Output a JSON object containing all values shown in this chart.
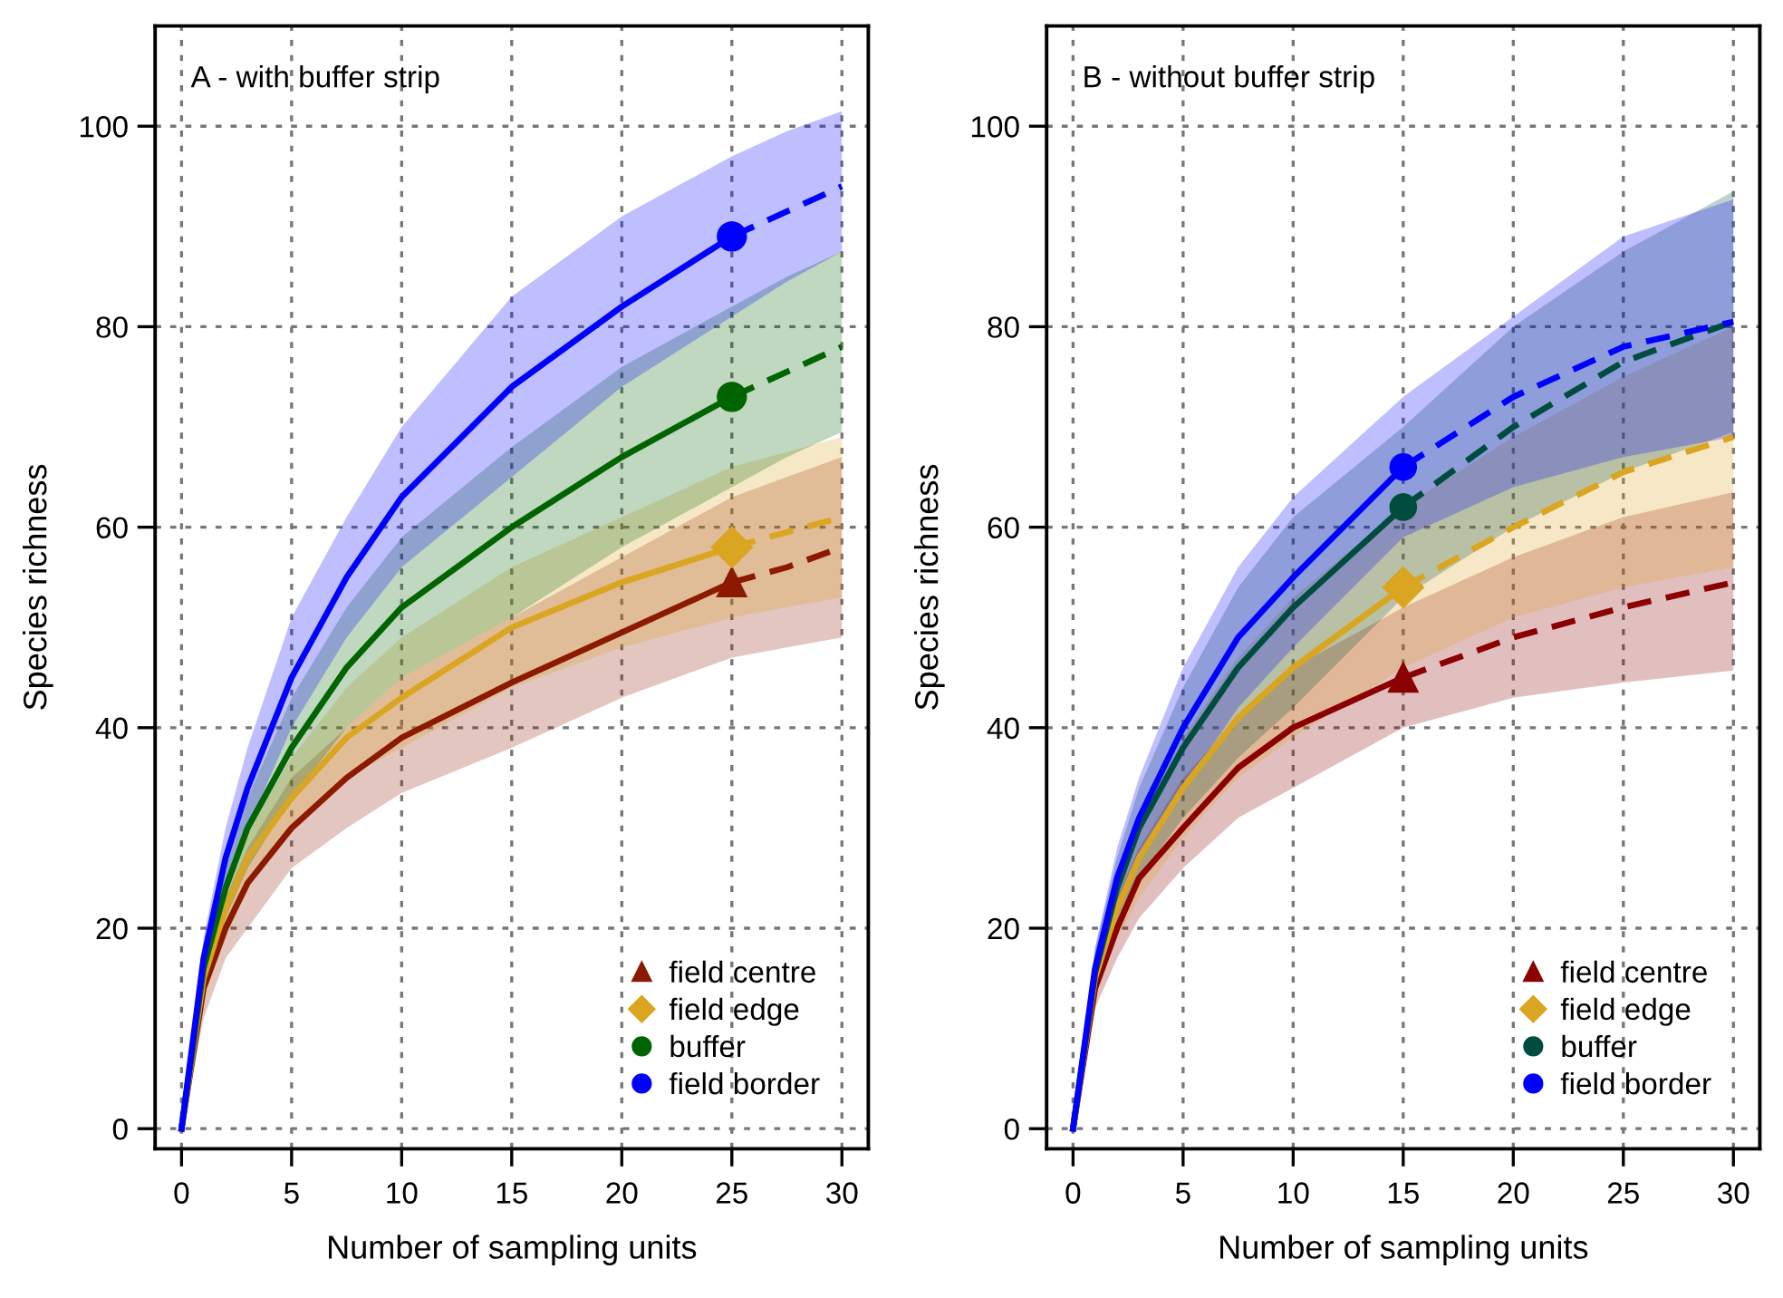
{
  "chart_data": [
    {
      "type": "line",
      "title": "A - with buffer strip",
      "xlabel": "Number of sampling units",
      "ylabel": "Species richness",
      "xlim": [
        -1.2,
        31.2
      ],
      "ylim": [
        -2,
        110
      ],
      "xticks": [
        0,
        5,
        10,
        15,
        20,
        25,
        30
      ],
      "yticks": [
        0,
        20,
        40,
        60,
        80,
        100
      ],
      "grid": true,
      "legend": "bottom right",
      "series": [
        {
          "color": "#8b1a00",
          "line_style": "solid",
          "x": [
            0,
            1,
            2,
            3,
            5,
            7.5,
            10,
            15,
            20,
            25
          ],
          "values": [
            0,
            14,
            20,
            24.5,
            30,
            35,
            39,
            44.5,
            49.5,
            54.5
          ],
          "lower": [
            0,
            11,
            17,
            20,
            26,
            30,
            33.5,
            38,
            43,
            47
          ],
          "upper": [
            0,
            17,
            23,
            28,
            35,
            40,
            45,
            51,
            57,
            63
          ]
        },
        {
          "color": "#8b1a00",
          "line_style": "dashed",
          "x": [
            25,
            27.5,
            30
          ],
          "values": [
            54.5,
            56,
            58
          ],
          "lower": [
            47,
            48,
            49
          ],
          "upper": [
            63,
            65,
            67
          ]
        },
        {
          "color": "#daa520",
          "line_style": "solid",
          "x": [
            0,
            1,
            2,
            3,
            5,
            7.5,
            10,
            15,
            20,
            25
          ],
          "values": [
            0,
            15,
            22,
            27,
            33,
            39,
            43,
            50,
            54.5,
            58
          ],
          "lower": [
            0,
            13,
            19,
            24,
            30,
            35,
            38,
            44,
            48,
            51
          ],
          "upper": [
            0,
            17,
            25,
            30,
            37,
            44,
            49,
            56,
            61,
            66
          ]
        },
        {
          "color": "#daa520",
          "line_style": "dashed",
          "x": [
            25,
            27.5,
            30
          ],
          "values": [
            58,
            59.5,
            61
          ],
          "lower": [
            51,
            52,
            53
          ],
          "upper": [
            66,
            67.5,
            69
          ]
        },
        {
          "color": "#006400",
          "line_style": "solid",
          "x": [
            0,
            1,
            2,
            3,
            5,
            7.5,
            10,
            15,
            20,
            25
          ],
          "values": [
            0,
            16,
            24,
            30,
            38,
            46,
            52,
            60,
            67,
            73
          ],
          "lower": [
            0,
            14,
            21,
            26,
            33,
            40,
            45,
            51,
            58,
            64
          ],
          "upper": [
            0,
            18,
            27,
            33,
            43,
            52,
            59,
            68,
            76,
            82
          ]
        },
        {
          "color": "#006400",
          "line_style": "dashed",
          "x": [
            25,
            27.5,
            30
          ],
          "values": [
            73,
            75.5,
            78
          ],
          "lower": [
            64,
            67,
            69.5
          ],
          "upper": [
            82,
            85,
            87.5
          ]
        },
        {
          "color": "#0000ff",
          "line_style": "solid",
          "x": [
            0,
            1,
            2,
            3,
            5,
            7.5,
            10,
            15,
            20,
            25
          ],
          "values": [
            0,
            17,
            27,
            34,
            45,
            55,
            63,
            74,
            82,
            89
          ],
          "lower": [
            0,
            15,
            24,
            30,
            40,
            49,
            56,
            65,
            74,
            81
          ],
          "upper": [
            0,
            19,
            30,
            38,
            51,
            61,
            70,
            83,
            91,
            97
          ]
        },
        {
          "color": "#0000ff",
          "line_style": "dashed",
          "x": [
            25,
            27.5,
            30
          ],
          "values": [
            89,
            91.5,
            94
          ],
          "lower": [
            81,
            84.5,
            87.5
          ],
          "upper": [
            97,
            99.5,
            101.5
          ]
        },
        {
          "type": "scatter",
          "name": "field centre",
          "color": "#8b1a00",
          "marker": "triangle",
          "x": [
            25
          ],
          "values": [
            54.5
          ]
        },
        {
          "type": "scatter",
          "name": "field edge",
          "color": "#daa520",
          "marker": "diamond",
          "x": [
            25
          ],
          "values": [
            58
          ]
        },
        {
          "type": "scatter",
          "name": "buffer",
          "color": "#006400",
          "marker": "circle",
          "x": [
            25
          ],
          "values": [
            73
          ]
        },
        {
          "type": "scatter",
          "name": "field border",
          "color": "#0000ff",
          "marker": "circle",
          "x": [
            25
          ],
          "values": [
            89
          ]
        }
      ]
    },
    {
      "type": "line",
      "title": "B - without buffer strip",
      "xlabel": "Number of sampling units",
      "ylabel": "Species richness",
      "xlim": [
        -1.2,
        31.2
      ],
      "ylim": [
        -2,
        110
      ],
      "xticks": [
        0,
        5,
        10,
        15,
        20,
        25,
        30
      ],
      "yticks": [
        0,
        20,
        40,
        60,
        80,
        100
      ],
      "grid": true,
      "legend": "bottom right",
      "series": [
        {
          "color": "#8b0000",
          "line_style": "solid",
          "x": [
            0,
            1,
            2,
            3,
            5,
            7.5,
            10,
            15
          ],
          "values": [
            0,
            14,
            20,
            25,
            30,
            36,
            40,
            45
          ],
          "lower": [
            0,
            12,
            17,
            21,
            26,
            31,
            34,
            40
          ],
          "upper": [
            0,
            16,
            23,
            28,
            35,
            41,
            46,
            52
          ]
        },
        {
          "color": "#8b0000",
          "line_style": "dashed",
          "x": [
            15,
            20,
            25,
            30
          ],
          "values": [
            45,
            49,
            52,
            54.5
          ],
          "lower": [
            40,
            43,
            44.5,
            45.7
          ],
          "upper": [
            52,
            57,
            61,
            63.5
          ]
        },
        {
          "color": "#daa520",
          "line_style": "solid",
          "x": [
            0,
            1,
            2,
            3,
            5,
            7.5,
            10,
            15
          ],
          "values": [
            0,
            15,
            22,
            27,
            34,
            41,
            46,
            54
          ],
          "lower": [
            0,
            13,
            19,
            23,
            29,
            35,
            39,
            46
          ],
          "upper": [
            0,
            17,
            25,
            31,
            39,
            47,
            53,
            62
          ]
        },
        {
          "color": "#daa520",
          "line_style": "dashed",
          "x": [
            15,
            20,
            25,
            30
          ],
          "values": [
            54,
            60,
            65.5,
            69
          ],
          "lower": [
            46,
            51,
            54,
            56
          ],
          "upper": [
            62,
            69,
            75,
            80
          ]
        },
        {
          "color": "#004d40",
          "line_style": "solid",
          "x": [
            0,
            1,
            2,
            3,
            5,
            7.5,
            10,
            15
          ],
          "values": [
            0,
            15.5,
            24,
            30,
            38,
            46,
            52,
            62
          ],
          "lower": [
            0,
            13,
            20,
            25,
            31,
            37,
            42,
            53
          ],
          "upper": [
            0,
            18,
            27,
            34,
            44,
            54,
            61,
            70
          ]
        },
        {
          "color": "#004d40",
          "line_style": "dashed",
          "x": [
            15,
            20,
            25,
            30
          ],
          "values": [
            62,
            70,
            76.5,
            80.5
          ],
          "lower": [
            53,
            60,
            65.5,
            69.5
          ],
          "upper": [
            70,
            80,
            87.5,
            93.5
          ]
        },
        {
          "color": "#0000ff",
          "line_style": "solid",
          "x": [
            0,
            1,
            2,
            3,
            5,
            7.5,
            10,
            15
          ],
          "values": [
            0,
            16,
            25,
            31,
            40,
            49,
            55,
            66
          ],
          "lower": [
            0,
            14,
            22,
            27,
            34,
            42,
            48,
            59
          ],
          "upper": [
            0,
            18,
            28,
            35,
            46,
            56,
            63,
            73
          ]
        },
        {
          "color": "#0000ff",
          "line_style": "dashed",
          "x": [
            15,
            20,
            25,
            30
          ],
          "values": [
            66,
            73,
            78,
            80.5
          ],
          "lower": [
            59,
            64,
            67,
            69
          ],
          "upper": [
            73,
            81,
            89,
            92.7
          ]
        },
        {
          "type": "scatter",
          "name": "field centre",
          "color": "#8b0000",
          "marker": "triangle",
          "x": [
            15
          ],
          "values": [
            45
          ]
        },
        {
          "type": "scatter",
          "name": "field edge",
          "color": "#daa520",
          "marker": "diamond",
          "x": [
            15
          ],
          "values": [
            54
          ]
        },
        {
          "type": "scatter",
          "name": "buffer",
          "color": "#004d40",
          "marker": "circle",
          "x": [
            15
          ],
          "values": [
            62
          ]
        },
        {
          "type": "scatter",
          "name": "field border",
          "color": "#0000ff",
          "marker": "circle",
          "x": [
            15
          ],
          "values": [
            66
          ]
        }
      ]
    }
  ]
}
